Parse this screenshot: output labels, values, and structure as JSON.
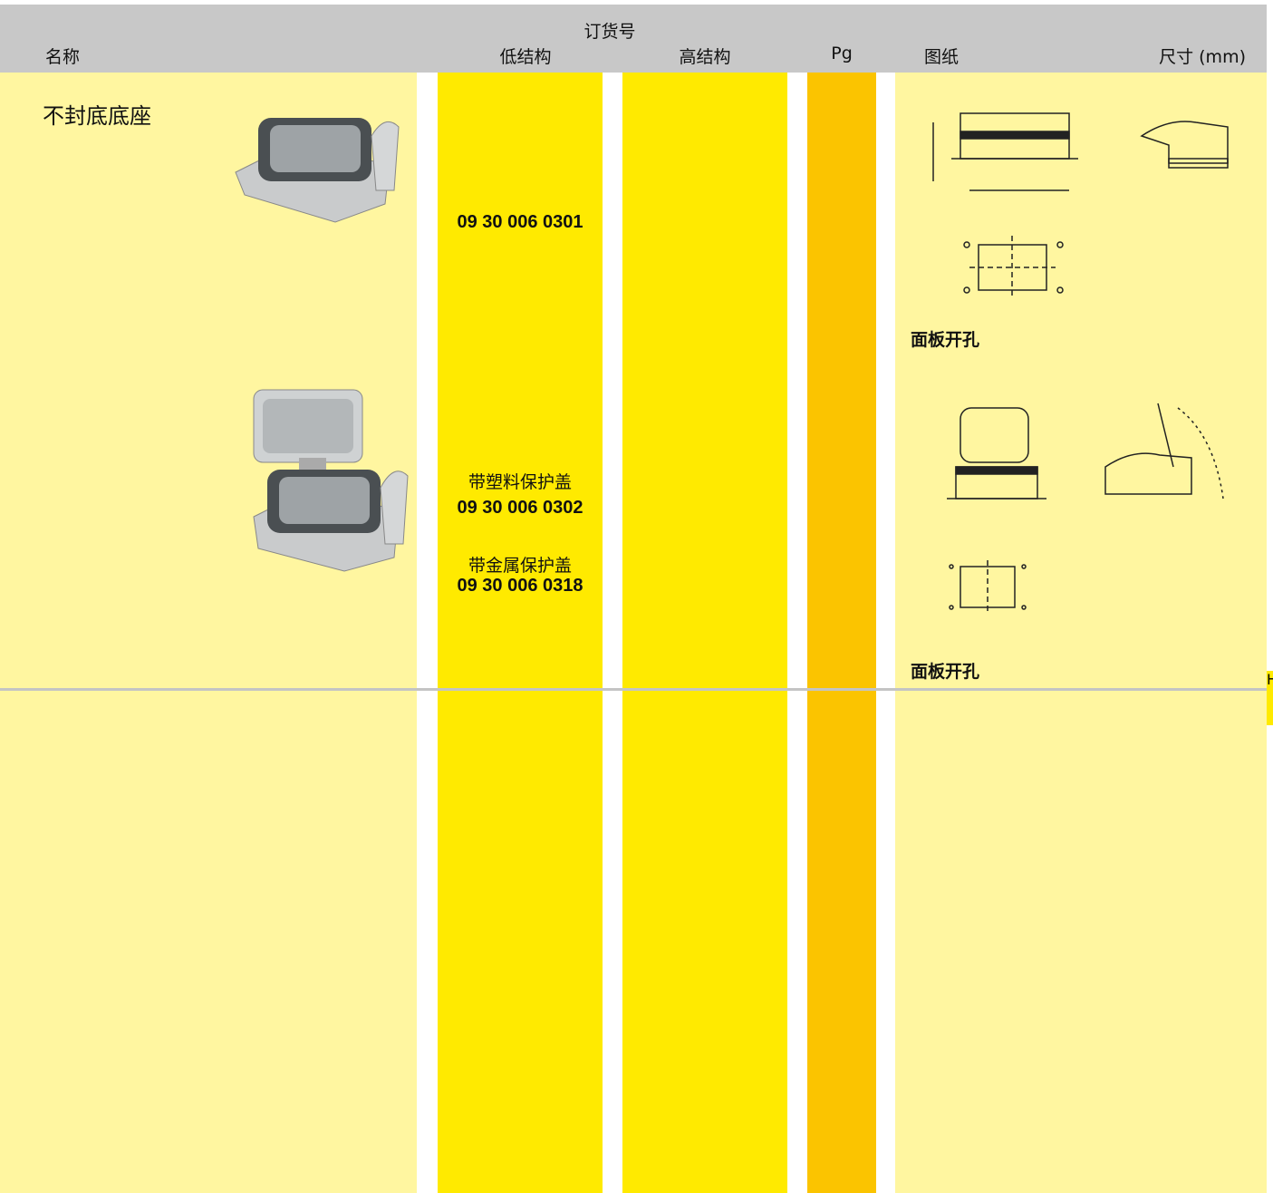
{
  "header": {
    "order_no": "订货号",
    "columns": [
      "名称",
      "低结构",
      "高结构",
      "Pg",
      "图纸",
      "尺寸 (mm)"
    ]
  },
  "rows": [
    {
      "name": "不封底底座",
      "low_structure": [
        "09 30 006 0301"
      ],
      "drawing_note": "面板开孔"
    },
    {
      "low_structure": [
        "带塑料保护盖",
        "09 30 006 0302",
        "带金属保护盖",
        "09 30 006 0318"
      ],
      "drawing_note": "面板开孔"
    }
  ],
  "edge_tab": "H"
}
